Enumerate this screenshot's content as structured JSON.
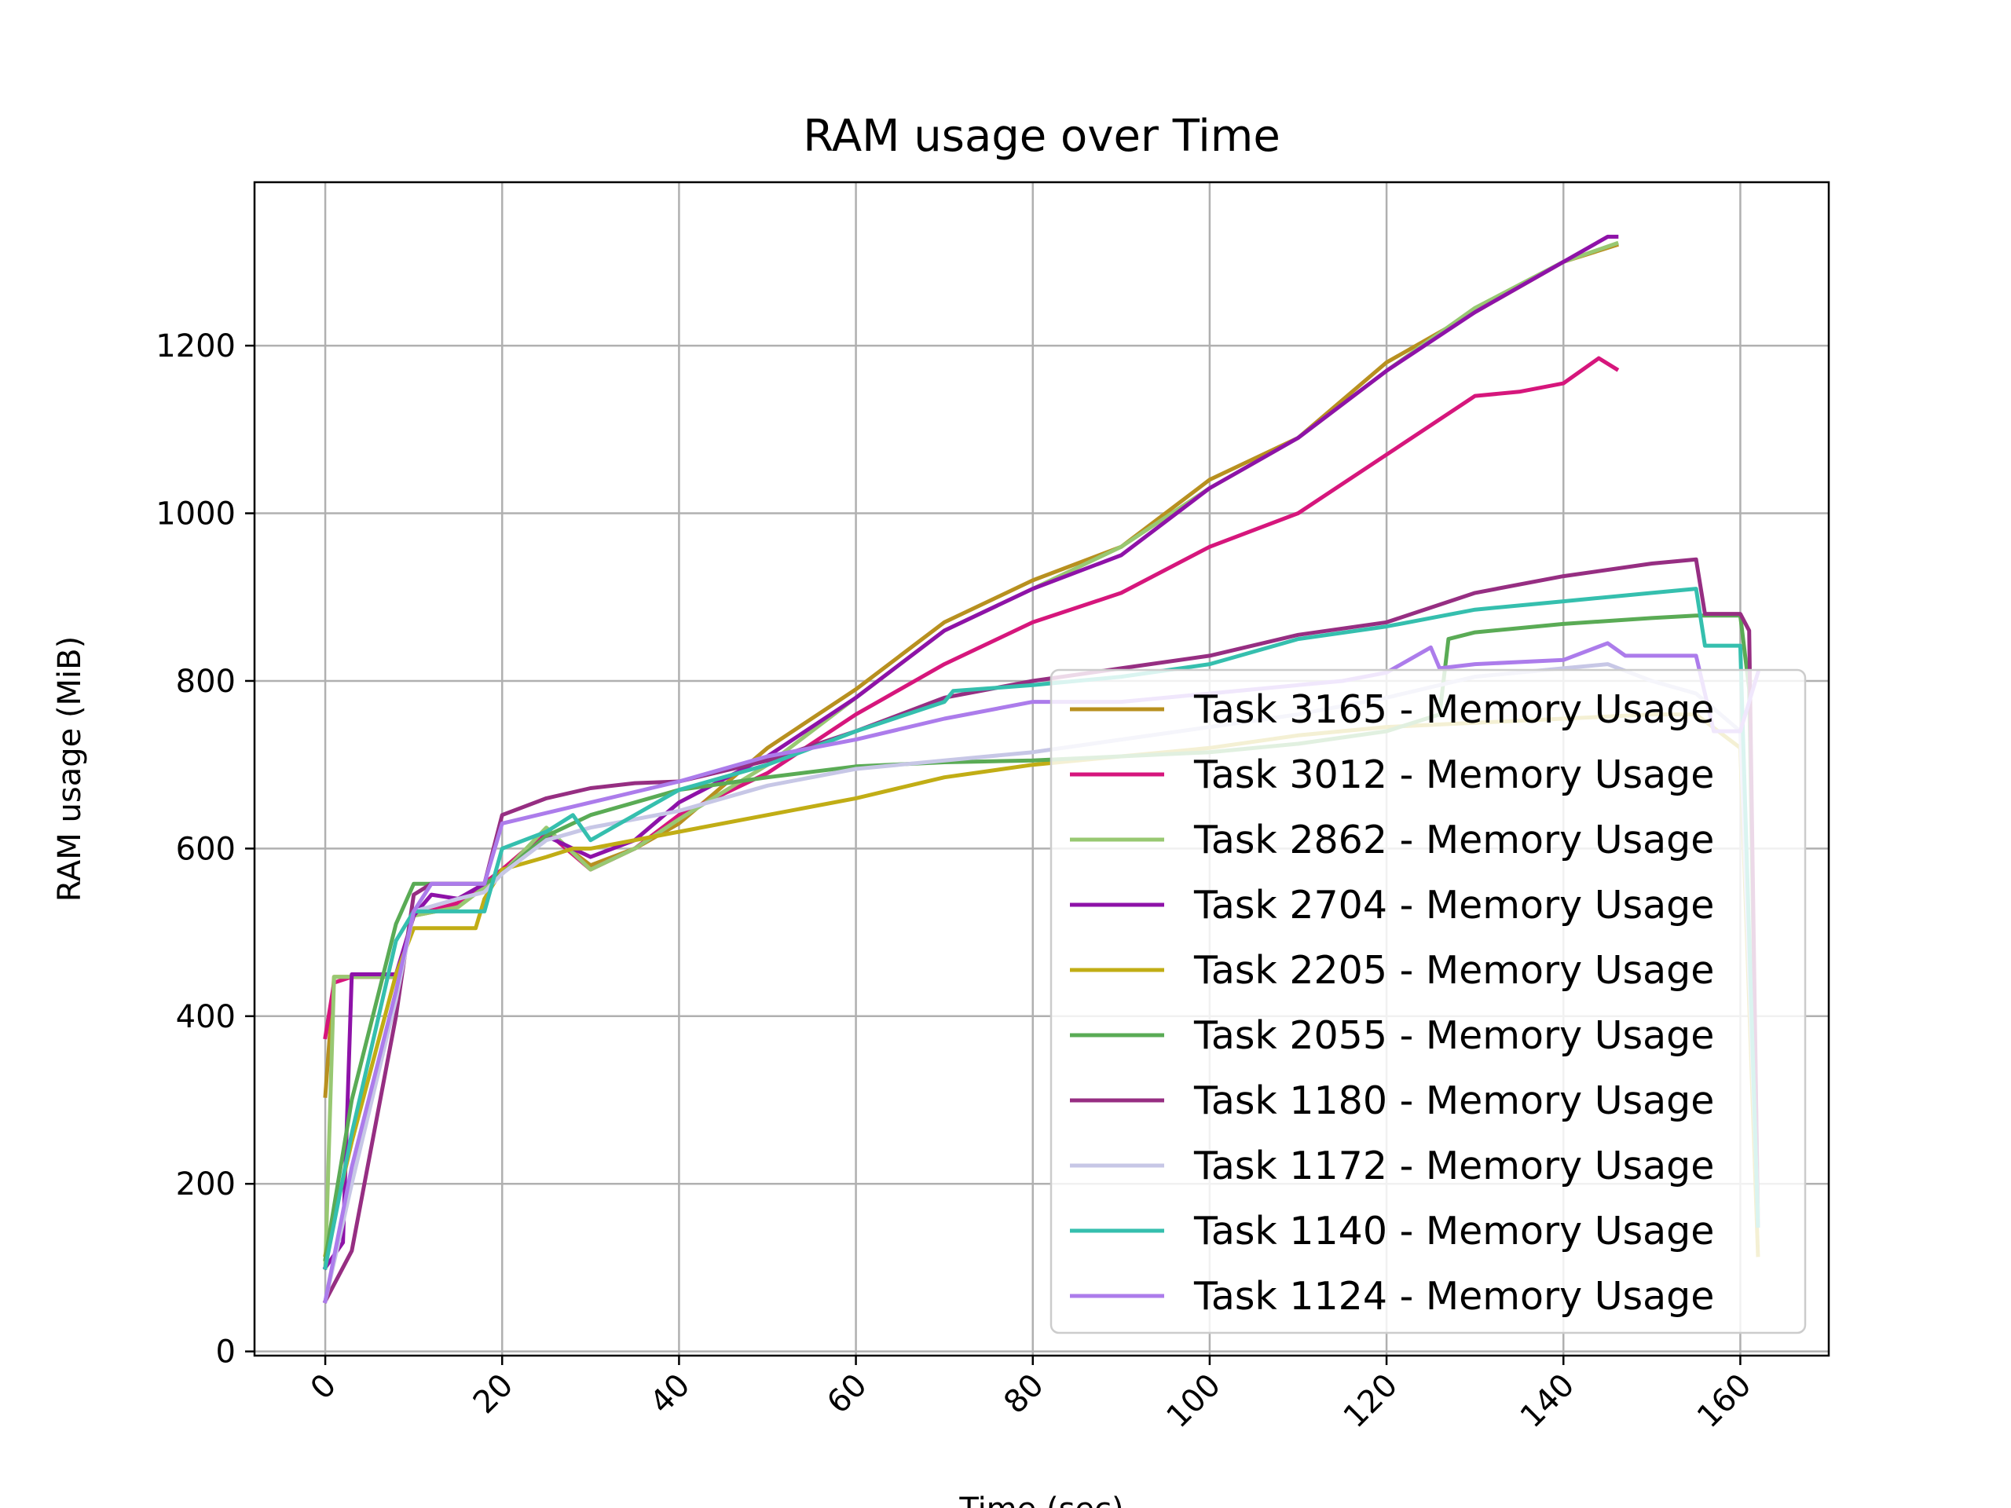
{
  "chart_data": {
    "type": "line",
    "title": "RAM usage over Time",
    "xlabel": "Time (sec)",
    "ylabel": "RAM usage (MiB)",
    "xlim": [
      -8,
      170
    ],
    "ylim": [
      -5,
      1395
    ],
    "xticks": [
      "0",
      "20",
      "40",
      "60",
      "80",
      "100",
      "120",
      "140",
      "160"
    ],
    "yticks": [
      "0",
      "200",
      "400",
      "600",
      "800",
      "1000",
      "1200"
    ],
    "grid": true,
    "legend_position": "lower-right",
    "series": [
      {
        "name": "Task 3165 - Memory Usage",
        "color": "#b8901f",
        "x": [
          0,
          1,
          3,
          5,
          8,
          10,
          15,
          20,
          25,
          30,
          35,
          40,
          50,
          60,
          65,
          70,
          80,
          90,
          100,
          110,
          120,
          130,
          140,
          146
        ],
        "y": [
          305,
          447,
          447,
          447,
          447,
          520,
          530,
          575,
          620,
          580,
          600,
          630,
          720,
          790,
          830,
          870,
          920,
          960,
          1040,
          1090,
          1180,
          1240,
          1300,
          1320
        ]
      },
      {
        "name": "Task 3012 - Memory Usage",
        "color": "#d6167c",
        "x": [
          0,
          1,
          3,
          5,
          8,
          10,
          15,
          20,
          25,
          30,
          35,
          40,
          50,
          60,
          70,
          80,
          90,
          100,
          110,
          120,
          130,
          135,
          140,
          144,
          146
        ],
        "y": [
          375,
          440,
          447,
          447,
          447,
          520,
          535,
          575,
          620,
          575,
          600,
          640,
          690,
          760,
          820,
          870,
          905,
          960,
          1000,
          1070,
          1140,
          1145,
          1155,
          1185,
          1172
        ]
      },
      {
        "name": "Task 2862 - Memory Usage",
        "color": "#98c872",
        "x": [
          0,
          1,
          3,
          5,
          8,
          10,
          15,
          20,
          25,
          30,
          35,
          40,
          50,
          60,
          70,
          80,
          90,
          100,
          110,
          120,
          130,
          140,
          146
        ],
        "y": [
          100,
          447,
          447,
          447,
          447,
          520,
          530,
          570,
          625,
          575,
          600,
          635,
          700,
          780,
          860,
          910,
          960,
          1030,
          1090,
          1170,
          1245,
          1300,
          1322
        ]
      },
      {
        "name": "Task 2704 - Memory Usage",
        "color": "#8e12a8",
        "x": [
          0,
          2,
          3,
          5,
          8,
          10,
          12,
          15,
          20,
          25,
          30,
          35,
          40,
          50,
          60,
          70,
          80,
          90,
          100,
          110,
          120,
          130,
          140,
          145,
          146
        ],
        "y": [
          100,
          130,
          450,
          450,
          450,
          520,
          545,
          540,
          570,
          615,
          590,
          610,
          655,
          710,
          780,
          860,
          910,
          950,
          1030,
          1090,
          1170,
          1240,
          1300,
          1330,
          1330
        ]
      },
      {
        "name": "Task 2205 - Memory Usage",
        "color": "#c1ad15",
        "x": [
          0,
          3,
          8,
          10,
          13,
          17,
          18,
          20,
          25,
          28,
          30,
          40,
          50,
          60,
          70,
          80,
          90,
          100,
          110,
          120,
          130,
          140,
          150,
          155,
          160,
          162
        ],
        "y": [
          115,
          250,
          450,
          505,
          505,
          505,
          540,
          575,
          590,
          600,
          600,
          620,
          640,
          660,
          685,
          700,
          710,
          720,
          735,
          745,
          750,
          755,
          760,
          760,
          720,
          115
        ]
      },
      {
        "name": "Task 2055 - Memory Usage",
        "color": "#5aab55",
        "x": [
          0,
          3,
          8,
          10,
          12,
          15,
          18,
          20,
          25,
          30,
          40,
          50,
          60,
          70,
          80,
          90,
          100,
          110,
          120,
          126,
          127,
          130,
          140,
          150,
          155,
          160,
          161,
          162
        ],
        "y": [
          110,
          300,
          510,
          558,
          558,
          558,
          558,
          570,
          615,
          640,
          670,
          685,
          698,
          703,
          705,
          710,
          715,
          725,
          740,
          760,
          850,
          858,
          868,
          875,
          878,
          878,
          790,
          160
        ]
      },
      {
        "name": "Task 1180 - Memory Usage",
        "color": "#962e82",
        "x": [
          0,
          3,
          8,
          10,
          12,
          15,
          18,
          20,
          25,
          30,
          35,
          40,
          50,
          60,
          70,
          80,
          90,
          100,
          110,
          120,
          130,
          140,
          150,
          155,
          156,
          160,
          161,
          162
        ],
        "y": [
          60,
          120,
          400,
          545,
          558,
          558,
          558,
          640,
          660,
          672,
          678,
          680,
          705,
          740,
          780,
          800,
          815,
          830,
          855,
          870,
          905,
          925,
          940,
          945,
          880,
          880,
          860,
          150
        ]
      },
      {
        "name": "Task 1172 - Memory Usage",
        "color": "#c7c7e6",
        "x": [
          0,
          3,
          8,
          10,
          15,
          18,
          20,
          25,
          30,
          40,
          50,
          60,
          70,
          80,
          90,
          100,
          110,
          120,
          130,
          140,
          145,
          150,
          155,
          160,
          162
        ],
        "y": [
          60,
          200,
          420,
          525,
          540,
          548,
          570,
          610,
          625,
          645,
          675,
          695,
          705,
          715,
          730,
          745,
          760,
          780,
          805,
          815,
          820,
          800,
          785,
          740,
          160
        ]
      },
      {
        "name": "Task 1140 - Memory Usage",
        "color": "#35bfae",
        "x": [
          0,
          3,
          8,
          10,
          12,
          15,
          18,
          20,
          25,
          28,
          30,
          40,
          50,
          60,
          70,
          71,
          80,
          90,
          100,
          110,
          120,
          130,
          140,
          150,
          155,
          156,
          160,
          162
        ],
        "y": [
          100,
          260,
          490,
          525,
          525,
          525,
          525,
          600,
          620,
          640,
          610,
          670,
          700,
          740,
          775,
          788,
          795,
          805,
          820,
          850,
          865,
          885,
          895,
          905,
          910,
          842,
          842,
          150
        ]
      },
      {
        "name": "Task 1124 - Memory Usage",
        "color": "#ac7ceb",
        "x": [
          0,
          3,
          8,
          10,
          12,
          15,
          18,
          20,
          30,
          40,
          50,
          60,
          70,
          80,
          90,
          100,
          110,
          115,
          120,
          125,
          126,
          130,
          140,
          145,
          147,
          150,
          155,
          157,
          160,
          162
        ],
        "y": [
          60,
          220,
          430,
          525,
          558,
          558,
          558,
          630,
          655,
          680,
          710,
          730,
          755,
          775,
          775,
          785,
          795,
          800,
          810,
          840,
          815,
          820,
          825,
          845,
          830,
          830,
          830,
          740,
          740,
          810
        ]
      }
    ]
  }
}
